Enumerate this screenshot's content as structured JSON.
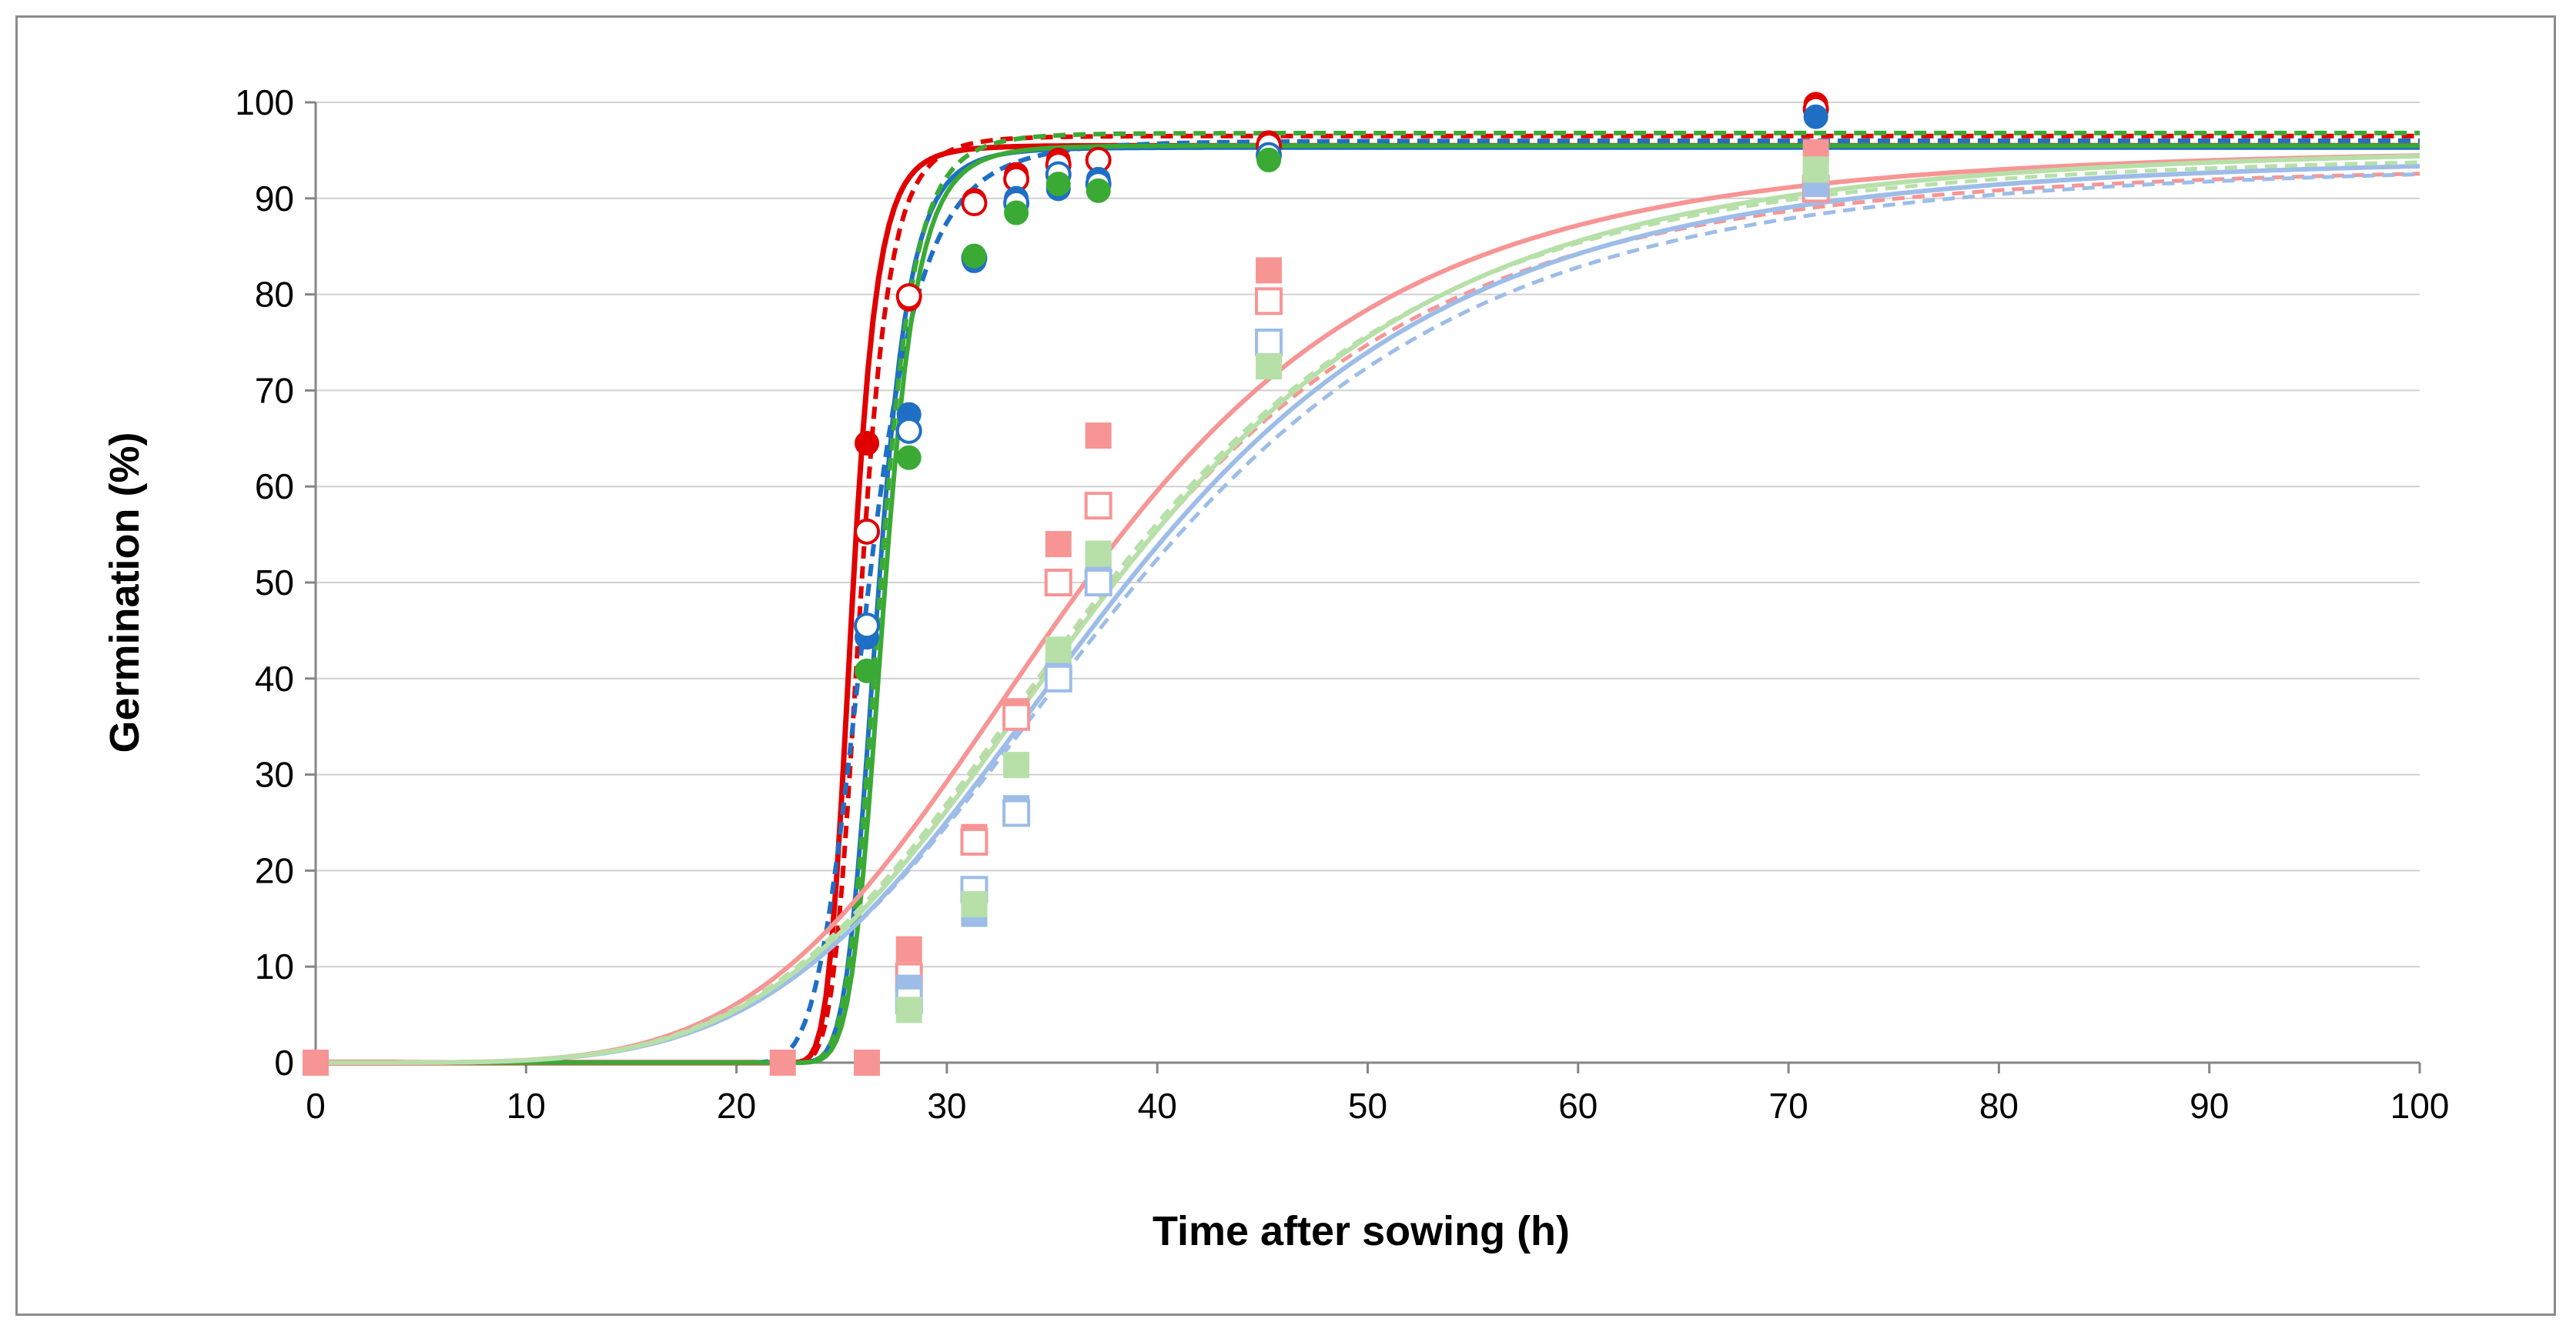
{
  "chart_data": {
    "type": "scatter",
    "title": "",
    "xlabel": "Time after sowing (h)",
    "ylabel": "Germination (%)",
    "xlim": [
      0,
      100
    ],
    "ylim": [
      0,
      100
    ],
    "x_ticks": [
      0,
      10,
      20,
      30,
      40,
      50,
      60,
      70,
      80,
      90,
      100
    ],
    "y_ticks": [
      0,
      10,
      20,
      30,
      40,
      50,
      60,
      70,
      80,
      90,
      100
    ],
    "grid": "horizontal major gridlines",
    "legend": "none",
    "colors": {
      "red": "#e00000",
      "blue": "#1f6fc5",
      "green": "#3aaa35",
      "pink": "#f79595",
      "light_blue": "#9dbde8",
      "light_green": "#b6e0a8",
      "grid": "#d0d0d0",
      "axis": "#868686"
    },
    "series": [
      {
        "name": "fast red filled circles",
        "marker": "circle",
        "filled": true,
        "color": "#e00000",
        "x": [
          0,
          22.2,
          26.2,
          28.2,
          31.3,
          33.3,
          35.3,
          37.2,
          45.3,
          71.3
        ],
        "y": [
          0,
          0,
          64.5,
          79.5,
          89.8,
          92.5,
          94,
          94,
          95.8,
          99.8
        ]
      },
      {
        "name": "fast red open circles",
        "marker": "circle",
        "filled": false,
        "color": "#e00000",
        "x": [
          26.2,
          28.2,
          31.3,
          33.3,
          35.3,
          37.2,
          45.3,
          71.3
        ],
        "y": [
          55.3,
          79.8,
          89.5,
          92,
          93.5,
          94,
          95.5,
          99.3
        ]
      },
      {
        "name": "fast blue filled circles",
        "marker": "circle",
        "filled": true,
        "color": "#1f6fc5",
        "x": [
          26.2,
          28.2,
          31.3,
          33.3,
          35.3,
          37.2,
          45.3,
          71.3
        ],
        "y": [
          44.3,
          67.5,
          83.5,
          90,
          91,
          92,
          94.3,
          98.5
        ]
      },
      {
        "name": "fast blue open circles",
        "marker": "circle",
        "filled": false,
        "color": "#1f6fc5",
        "x": [
          26.2,
          28.2,
          31.3,
          33.3,
          35.3,
          37.2,
          45.3
        ],
        "y": [
          45.5,
          65.8,
          83.8,
          89.5,
          92.5,
          91.5,
          94.5
        ]
      },
      {
        "name": "fast green filled circles",
        "marker": "circle",
        "filled": true,
        "color": "#3aaa35",
        "x": [
          26.2,
          28.2,
          31.3,
          33.3,
          35.3,
          37.2,
          45.3
        ],
        "y": [
          40.8,
          63,
          84,
          88.5,
          91.5,
          90.8,
          94
        ]
      },
      {
        "name": "slow pink filled squares",
        "marker": "square",
        "filled": true,
        "color": "#f79595",
        "x": [
          0,
          22.2,
          26.2,
          28.2,
          31.3,
          33.3,
          35.3,
          37.2,
          45.3,
          71.3
        ],
        "y": [
          0,
          0,
          0,
          11.8,
          23.5,
          36.6,
          54,
          65.3,
          82.5,
          94.8
        ]
      },
      {
        "name": "slow pink open squares",
        "marker": "square",
        "filled": false,
        "color": "#f79595",
        "x": [
          28.2,
          31.3,
          33.3,
          35.3,
          37.2,
          45.3,
          71.3
        ],
        "y": [
          9,
          23,
          36,
          50,
          58,
          79.3,
          91
        ]
      },
      {
        "name": "slow light blue filled squares",
        "marker": "square",
        "filled": true,
        "color": "#9dbde8",
        "x": [
          28.2,
          31.3,
          33.3,
          35.3,
          37.2,
          45.3,
          71.3
        ],
        "y": [
          7.8,
          15.5,
          26.5,
          40.5,
          52.5,
          74.5,
          91.5
        ]
      },
      {
        "name": "slow light blue open squares",
        "marker": "square",
        "filled": false,
        "color": "#9dbde8",
        "x": [
          28.2,
          31.3,
          33.3,
          35.3,
          37.2,
          45.3
        ],
        "y": [
          6.5,
          18,
          26,
          40,
          50,
          75
        ]
      },
      {
        "name": "slow light green filled squares",
        "marker": "square",
        "filled": true,
        "color": "#b6e0a8",
        "x": [
          28.2,
          31.3,
          33.3,
          35.3,
          37.2,
          45.3,
          71.3
        ],
        "y": [
          5.5,
          16.5,
          31,
          43,
          53,
          72.5,
          93
        ]
      }
    ],
    "fitted_curves": [
      {
        "name": "red solid fit",
        "color": "#e00000",
        "dashed": false,
        "width": 7,
        "lag": 22,
        "max": 95.5,
        "t50": 25.5,
        "steep": 5.8
      },
      {
        "name": "red dashed fit",
        "color": "#e00000",
        "dashed": true,
        "width": 6,
        "lag": 22,
        "max": 96.5,
        "t50": 25.9,
        "steep": 5.6
      },
      {
        "name": "blue solid fit",
        "color": "#1f6fc5",
        "dashed": false,
        "width": 6,
        "lag": 22,
        "max": 95.3,
        "t50": 26.7,
        "steep": 6.0
      },
      {
        "name": "blue dashed fit",
        "color": "#1f6fc5",
        "dashed": true,
        "width": 6,
        "lag": 19.8,
        "max": 96,
        "t50": 26.2,
        "steep": 5.0
      },
      {
        "name": "green solid fit",
        "color": "#3aaa35",
        "dashed": false,
        "width": 6,
        "lag": 22,
        "max": 95.5,
        "t50": 27.0,
        "steep": 6.2
      },
      {
        "name": "green dashed fit",
        "color": "#3aaa35",
        "dashed": true,
        "width": 6,
        "lag": 22,
        "max": 96.8,
        "t50": 26.8,
        "steep": 5.9
      },
      {
        "name": "pink solid fit",
        "color": "#f79595",
        "dashed": false,
        "width": 6,
        "lag": 0,
        "max": 95.3,
        "t50": 35.8,
        "steep": 4.6
      },
      {
        "name": "pink dashed fit",
        "color": "#f79595",
        "dashed": true,
        "width": 5,
        "lag": 0,
        "max": 93.6,
        "t50": 36.8,
        "steep": 4.5
      },
      {
        "name": "light blue solid fit",
        "color": "#9dbde8",
        "dashed": false,
        "width": 6,
        "lag": 0,
        "max": 94.5,
        "t50": 37.6,
        "steep": 4.5
      },
      {
        "name": "light blue dashed fit",
        "color": "#9dbde8",
        "dashed": true,
        "width": 5,
        "lag": 0,
        "max": 93.8,
        "t50": 37.9,
        "steep": 4.4
      },
      {
        "name": "light green solid fit",
        "color": "#b6e0a8",
        "dashed": false,
        "width": 6,
        "lag": 0,
        "max": 95.5,
        "t50": 37.2,
        "steep": 4.5
      },
      {
        "name": "light green dashed fit",
        "color": "#b6e0a8",
        "dashed": true,
        "width": 5,
        "lag": 0,
        "max": 94.8,
        "t50": 36.8,
        "steep": 4.5
      }
    ]
  }
}
